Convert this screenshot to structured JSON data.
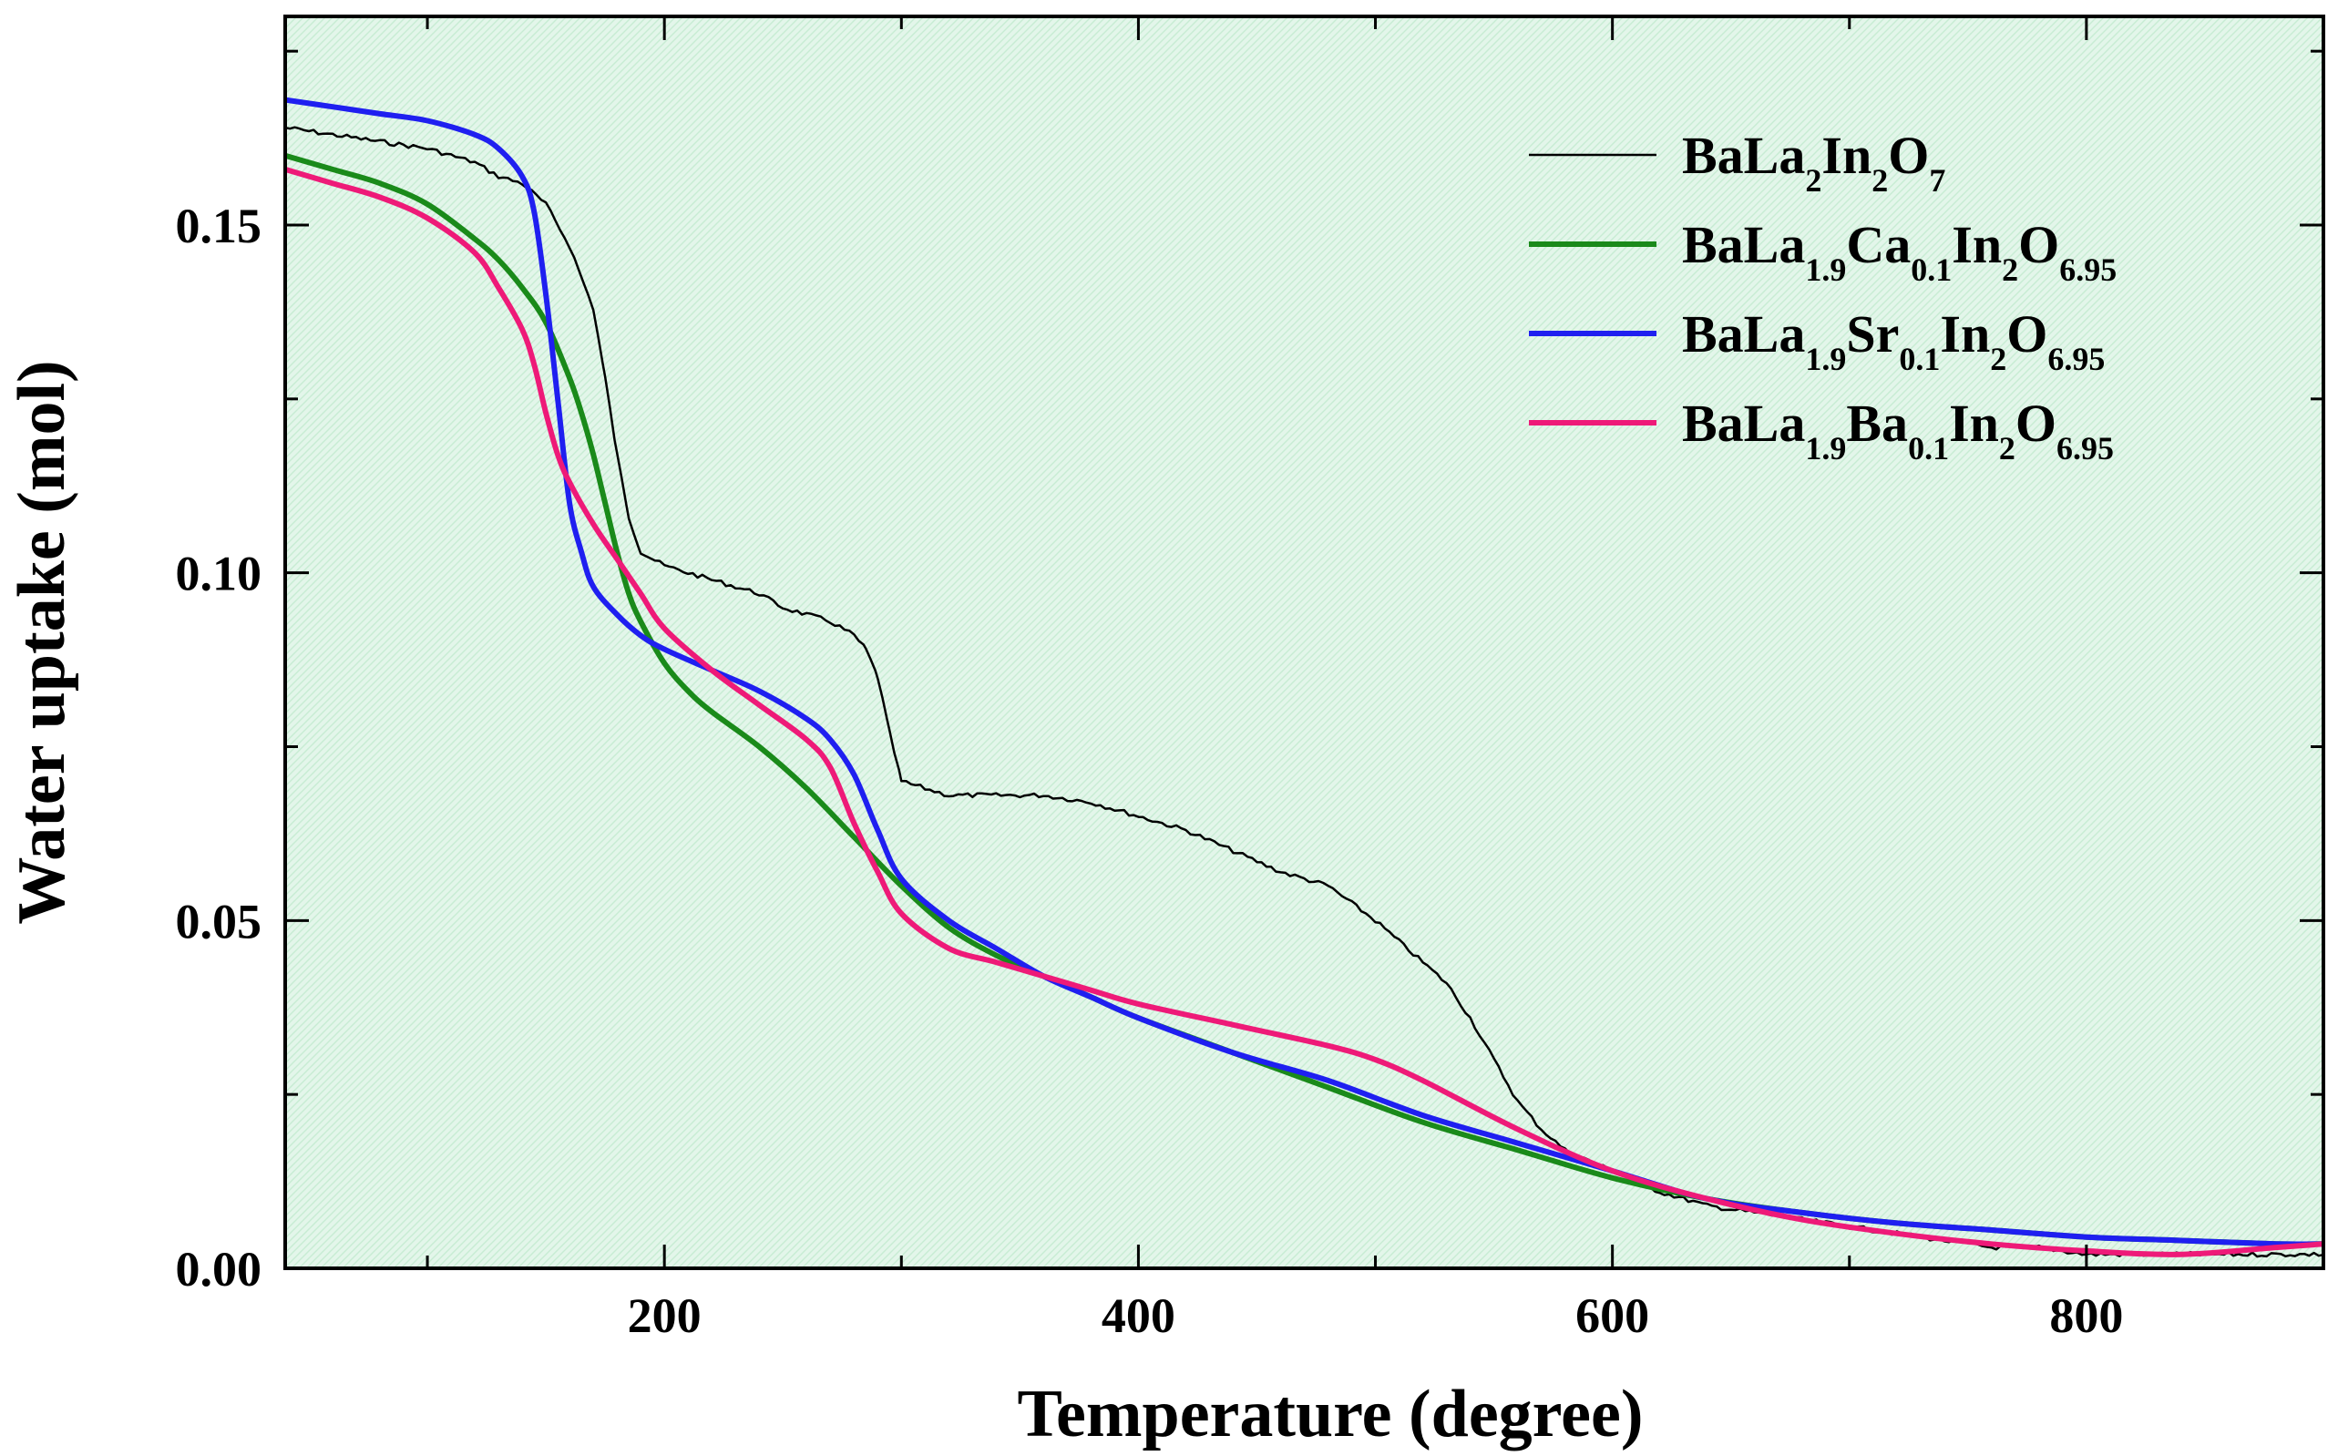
{
  "chart_data": {
    "type": "line",
    "title": "",
    "xlabel": "Temperature (degree)",
    "ylabel": "Water uptake (mol)",
    "xlim": [
      40,
      900
    ],
    "ylim": [
      0.0,
      0.18
    ],
    "x_ticks": [
      200,
      400,
      600,
      800
    ],
    "x_tick_labels": [
      "200",
      "400",
      "600",
      "800"
    ],
    "y_ticks": [
      0.0,
      0.05,
      0.1,
      0.15
    ],
    "y_tick_labels": [
      "0.00",
      "0.05",
      "0.10",
      "0.15"
    ],
    "legend_position": "top-right",
    "background": "light green hatched",
    "series": [
      {
        "name": "BaLa2In2O7",
        "legend": [
          {
            "t": "BaLa"
          },
          {
            "t": "2",
            "sub": true
          },
          {
            "t": "In"
          },
          {
            "t": "2",
            "sub": true
          },
          {
            "t": "O"
          },
          {
            "t": "7",
            "sub": true
          }
        ],
        "color": "#000000",
        "stroke": 2.5,
        "noise": true,
        "x": [
          40,
          60,
          80,
          100,
          120,
          130,
          140,
          150,
          160,
          170,
          175,
          180,
          185,
          190,
          200,
          210,
          220,
          230,
          240,
          250,
          260,
          270,
          280,
          285,
          290,
          295,
          300,
          310,
          320,
          340,
          360,
          380,
          400,
          420,
          440,
          460,
          480,
          500,
          520,
          530,
          540,
          550,
          560,
          570,
          580,
          600,
          620,
          640,
          660,
          680,
          700,
          720,
          740,
          760,
          780,
          800,
          820,
          840,
          860,
          880,
          900
        ],
        "values": [
          0.164,
          0.163,
          0.162,
          0.161,
          0.159,
          0.157,
          0.156,
          0.153,
          0.147,
          0.138,
          0.128,
          0.117,
          0.108,
          0.103,
          0.101,
          0.1,
          0.099,
          0.098,
          0.097,
          0.095,
          0.094,
          0.093,
          0.091,
          0.089,
          0.085,
          0.077,
          0.07,
          0.069,
          0.068,
          0.068,
          0.068,
          0.067,
          0.065,
          0.063,
          0.06,
          0.057,
          0.055,
          0.05,
          0.044,
          0.041,
          0.036,
          0.03,
          0.024,
          0.02,
          0.017,
          0.014,
          0.011,
          0.009,
          0.008,
          0.007,
          0.006,
          0.005,
          0.004,
          0.003,
          0.003,
          0.002,
          0.002,
          0.002,
          0.002,
          0.002,
          0.002
        ]
      },
      {
        "name": "BaLa1.9Ca0.1In2O6.95",
        "legend": [
          {
            "t": "BaLa"
          },
          {
            "t": "1.9",
            "sub": true
          },
          {
            "t": "Ca"
          },
          {
            "t": "0.1",
            "sub": true
          },
          {
            "t": "In"
          },
          {
            "t": "2",
            "sub": true
          },
          {
            "t": "O"
          },
          {
            "t": "6.95",
            "sub": true
          }
        ],
        "color": "#1a8a1a",
        "stroke": 6,
        "noise": false,
        "x": [
          40,
          60,
          80,
          100,
          120,
          130,
          140,
          150,
          160,
          165,
          170,
          175,
          180,
          185,
          190,
          200,
          210,
          220,
          240,
          260,
          280,
          300,
          320,
          340,
          360,
          380,
          400,
          440,
          480,
          520,
          560,
          600,
          640,
          680,
          720,
          760,
          800,
          840,
          880,
          900
        ],
        "values": [
          0.16,
          0.158,
          0.156,
          0.153,
          0.148,
          0.145,
          0.141,
          0.136,
          0.128,
          0.123,
          0.117,
          0.11,
          0.103,
          0.097,
          0.093,
          0.087,
          0.083,
          0.08,
          0.075,
          0.069,
          0.062,
          0.055,
          0.049,
          0.045,
          0.042,
          0.039,
          0.036,
          0.031,
          0.026,
          0.021,
          0.017,
          0.013,
          0.01,
          0.008,
          0.0065,
          0.0055,
          0.0045,
          0.004,
          0.0035,
          0.0035
        ]
      },
      {
        "name": "BaLa1.9Sr0.1In2O6.95",
        "legend": [
          {
            "t": "BaLa"
          },
          {
            "t": "1.9",
            "sub": true
          },
          {
            "t": "Sr"
          },
          {
            "t": "0.1",
            "sub": true
          },
          {
            "t": "In"
          },
          {
            "t": "2",
            "sub": true
          },
          {
            "t": "O"
          },
          {
            "t": "6.95",
            "sub": true
          }
        ],
        "color": "#1f1ff0",
        "stroke": 6,
        "noise": false,
        "x": [
          40,
          60,
          80,
          100,
          120,
          130,
          140,
          145,
          150,
          155,
          160,
          165,
          170,
          180,
          190,
          200,
          220,
          240,
          260,
          270,
          280,
          290,
          300,
          320,
          340,
          360,
          380,
          400,
          440,
          480,
          520,
          560,
          600,
          640,
          680,
          720,
          760,
          800,
          840,
          880,
          900
        ],
        "values": [
          0.168,
          0.167,
          0.166,
          0.165,
          0.163,
          0.161,
          0.157,
          0.152,
          0.14,
          0.125,
          0.11,
          0.103,
          0.098,
          0.094,
          0.091,
          0.089,
          0.086,
          0.083,
          0.079,
          0.076,
          0.071,
          0.063,
          0.056,
          0.05,
          0.046,
          0.042,
          0.039,
          0.036,
          0.031,
          0.027,
          0.022,
          0.018,
          0.014,
          0.01,
          0.008,
          0.0065,
          0.0055,
          0.0045,
          0.004,
          0.0035,
          0.0035
        ]
      },
      {
        "name": "BaLa1.9Ba0.1In2O6.95",
        "legend": [
          {
            "t": "BaLa"
          },
          {
            "t": "1.9",
            "sub": true
          },
          {
            "t": "Ba"
          },
          {
            "t": "0.1",
            "sub": true
          },
          {
            "t": "In"
          },
          {
            "t": "2",
            "sub": true
          },
          {
            "t": "O"
          },
          {
            "t": "6.95",
            "sub": true
          }
        ],
        "color": "#ee1a78",
        "stroke": 6,
        "noise": false,
        "x": [
          40,
          60,
          80,
          100,
          120,
          130,
          140,
          145,
          150,
          155,
          160,
          170,
          180,
          190,
          200,
          220,
          240,
          260,
          270,
          280,
          290,
          300,
          320,
          340,
          360,
          380,
          400,
          440,
          480,
          500,
          520,
          560,
          600,
          640,
          680,
          720,
          760,
          800,
          840,
          880,
          900
        ],
        "values": [
          0.158,
          0.156,
          0.154,
          0.151,
          0.146,
          0.141,
          0.135,
          0.13,
          0.123,
          0.117,
          0.113,
          0.107,
          0.102,
          0.097,
          0.092,
          0.086,
          0.081,
          0.076,
          0.072,
          0.064,
          0.057,
          0.051,
          0.046,
          0.044,
          0.042,
          0.04,
          0.038,
          0.035,
          0.032,
          0.03,
          0.027,
          0.02,
          0.014,
          0.01,
          0.007,
          0.005,
          0.0035,
          0.0025,
          0.002,
          0.003,
          0.0035
        ]
      }
    ]
  }
}
